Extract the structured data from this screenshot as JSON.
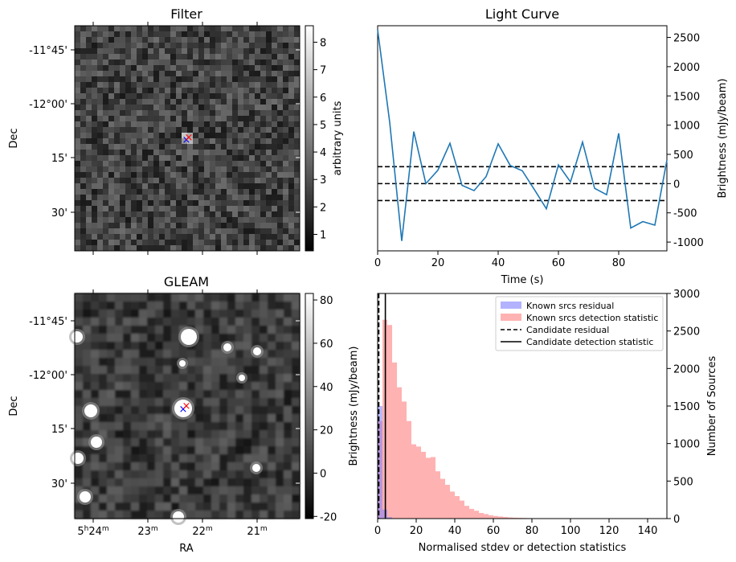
{
  "chart_data": [
    {
      "type": "heatmap",
      "title": "Filter",
      "xlabel": "",
      "ylabel": "Dec",
      "y_ticks": [
        "-11°45'",
        "-12°00'",
        "15'",
        "30'"
      ],
      "colorbar": {
        "label": "arbitrary units",
        "range": [
          0.4,
          8.6
        ],
        "ticks": [
          "1",
          "2",
          "3",
          "4",
          "5",
          "6",
          "7",
          "8"
        ]
      },
      "markers": [
        {
          "symbol": "x",
          "color": "#0000ff"
        },
        {
          "symbol": "x",
          "color": "#ff0000"
        }
      ]
    },
    {
      "type": "line",
      "title": "Light Curve",
      "xlabel": "Time (s)",
      "ylabel": "Brightness (mJy/beam)",
      "xlim": [
        0,
        96
      ],
      "ylim": [
        -1150,
        2700
      ],
      "x_ticks": [
        "0",
        "20",
        "40",
        "60",
        "80"
      ],
      "y_ticks": [
        "2500",
        "2000",
        "1500",
        "1000",
        "500",
        "0",
        "-500",
        "-1000"
      ],
      "series": [
        {
          "color": "#1f77b4",
          "x": [
            0,
            4,
            8,
            12,
            16,
            20,
            24,
            28,
            32,
            36,
            40,
            44,
            48,
            52,
            56,
            60,
            64,
            68,
            72,
            76,
            80,
            84,
            88,
            92,
            96
          ],
          "y": [
            2630,
            1050,
            -980,
            890,
            0,
            230,
            690,
            -30,
            -120,
            120,
            680,
            310,
            220,
            -100,
            -430,
            320,
            30,
            710,
            -80,
            -190,
            860,
            -760,
            -650,
            -710,
            400
          ]
        }
      ],
      "hlines": [
        {
          "y": 290,
          "style": "dashed"
        },
        {
          "y": 0,
          "style": "dashed"
        },
        {
          "y": -290,
          "style": "dashed"
        }
      ]
    },
    {
      "type": "heatmap",
      "title": "GLEAM",
      "xlabel": "RA",
      "ylabel": "Dec",
      "x_ticks": [
        "5h24m",
        "23m",
        "22m",
        "21m"
      ],
      "y_ticks": [
        "-11°45'",
        "-12°00'",
        "15'",
        "30'"
      ],
      "colorbar": {
        "label": "",
        "range": [
          -21,
          83
        ],
        "ticks": [
          "80",
          "60",
          "40",
          "20",
          "0",
          "-20"
        ]
      },
      "markers": [
        {
          "symbol": "x",
          "color": "#0000ff"
        },
        {
          "symbol": "x",
          "color": "#ff0000"
        }
      ]
    },
    {
      "type": "bar",
      "title": "",
      "xlabel": "Normalised stdev or detection statistics",
      "ylabel": "Brightness (mJy/beam)",
      "ylabel_right": "Number of Sources",
      "xlim": [
        0,
        150
      ],
      "ylim": [
        0,
        3000
      ],
      "x_ticks": [
        "0",
        "20",
        "40",
        "60",
        "80",
        "100",
        "120",
        "140"
      ],
      "y_ticks": [
        "3000",
        "2500",
        "2000",
        "1500",
        "1000",
        "500",
        "0"
      ],
      "bin_width": 2.5,
      "series": [
        {
          "name": "Known srcs residual",
          "color": "#7f7fff",
          "x": [
            0,
            2.5,
            5,
            7.5
          ],
          "values": [
            1500,
            120,
            20,
            5
          ]
        },
        {
          "name": "Known srcs detection statistic",
          "color": "#ff7f7f",
          "x": [
            0,
            2.5,
            5,
            7.5,
            10,
            12.5,
            15,
            17.5,
            20,
            22.5,
            25,
            27.5,
            30,
            32.5,
            35,
            37.5,
            40,
            42.5,
            45,
            47.5,
            50,
            52.5,
            55,
            57.5,
            60,
            62.5,
            65,
            67.5,
            70,
            72.5,
            75,
            77.5,
            80,
            82.5,
            85,
            87.5,
            90,
            92.5,
            95,
            97.5,
            100,
            102.5,
            105,
            107.5,
            110,
            112.5,
            115,
            117.5,
            120
          ],
          "values": [
            1300,
            2650,
            2580,
            2080,
            1750,
            1560,
            1300,
            990,
            960,
            890,
            810,
            820,
            630,
            530,
            450,
            360,
            300,
            240,
            170,
            130,
            105,
            75,
            60,
            45,
            35,
            28,
            22,
            16,
            12,
            10,
            8,
            6,
            5,
            4,
            4,
            3,
            3,
            2,
            2,
            2,
            2,
            1,
            1,
            1,
            1,
            1,
            1,
            1,
            1
          ]
        }
      ],
      "vlines": [
        {
          "name": "Candidate residual",
          "x": 0.6,
          "style": "dashed"
        },
        {
          "name": "Candidate detection statistic",
          "x": 4,
          "style": "solid"
        }
      ],
      "legend": "top-right"
    }
  ]
}
